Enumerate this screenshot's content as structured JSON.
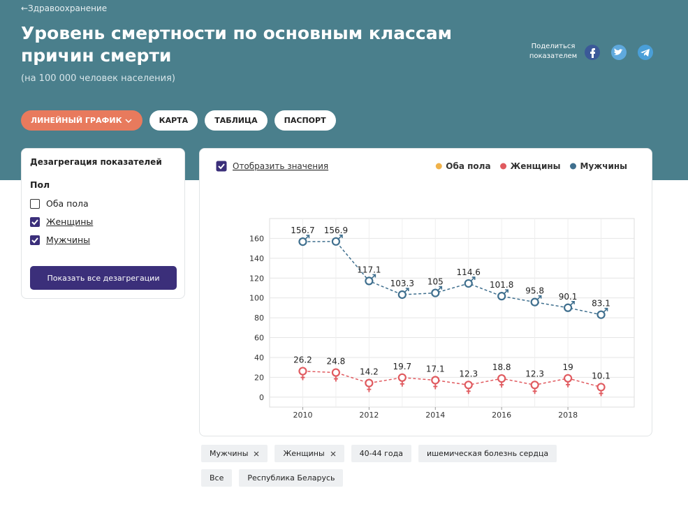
{
  "breadcrumb": "←Здравоохранение",
  "header": {
    "title": "Уровень смертности по основным классам причин смерти",
    "subtitle": "(на 100 000 человек населения)",
    "share": "Поделиться показателем"
  },
  "tabs": [
    {
      "label": "ЛИНЕЙНЫЙ ГРАФИК",
      "active": true
    },
    {
      "label": "КАРТА",
      "active": false
    },
    {
      "label": "ТАБЛИЦА",
      "active": false
    },
    {
      "label": "ПАСПОРТ",
      "active": false
    }
  ],
  "sidebar": {
    "title": "Дезагрегация показателей",
    "group": "Пол",
    "options": [
      {
        "label": "Оба пола",
        "checked": false
      },
      {
        "label": "Женщины",
        "checked": true
      },
      {
        "label": "Мужчины",
        "checked": true
      }
    ],
    "button": "Показать все дезагрегации"
  },
  "show_values": {
    "label": "Отобразить значения",
    "checked": true
  },
  "chart_data": {
    "type": "line",
    "x": [
      2010,
      2011,
      2012,
      2013,
      2014,
      2015,
      2016,
      2017,
      2018,
      2019
    ],
    "xlim": [
      2009,
      2020
    ],
    "xticks": [
      2010,
      2012,
      2014,
      2016,
      2018
    ],
    "ylim": [
      -10,
      180
    ],
    "yticks": [
      0,
      20,
      40,
      60,
      80,
      100,
      120,
      140,
      160
    ],
    "grid": true,
    "series": [
      {
        "name": "Оба пола",
        "color": "#f0b24a",
        "values": [
          null,
          null,
          null,
          null,
          null,
          null,
          null,
          null,
          null,
          null
        ]
      },
      {
        "name": "Женщины",
        "color": "#e05a5f",
        "values": [
          26.2,
          24.8,
          14.2,
          19.7,
          17.1,
          12.3,
          18.8,
          12.3,
          19,
          10.1
        ]
      },
      {
        "name": "Мужчины",
        "color": "#3f6f8e",
        "values": [
          156.7,
          156.9,
          117.1,
          103.3,
          105,
          114.6,
          101.8,
          95.8,
          90.1,
          83.1
        ]
      }
    ]
  },
  "filters": [
    {
      "label": "Мужчины",
      "removable": true
    },
    {
      "label": "Женщины",
      "removable": true
    },
    {
      "label": "40-44 года",
      "removable": false
    },
    {
      "label": "ишемическая болезнь сердца",
      "removable": false
    },
    {
      "label": "Все",
      "removable": false
    },
    {
      "label": "Республика Беларусь",
      "removable": false
    }
  ]
}
